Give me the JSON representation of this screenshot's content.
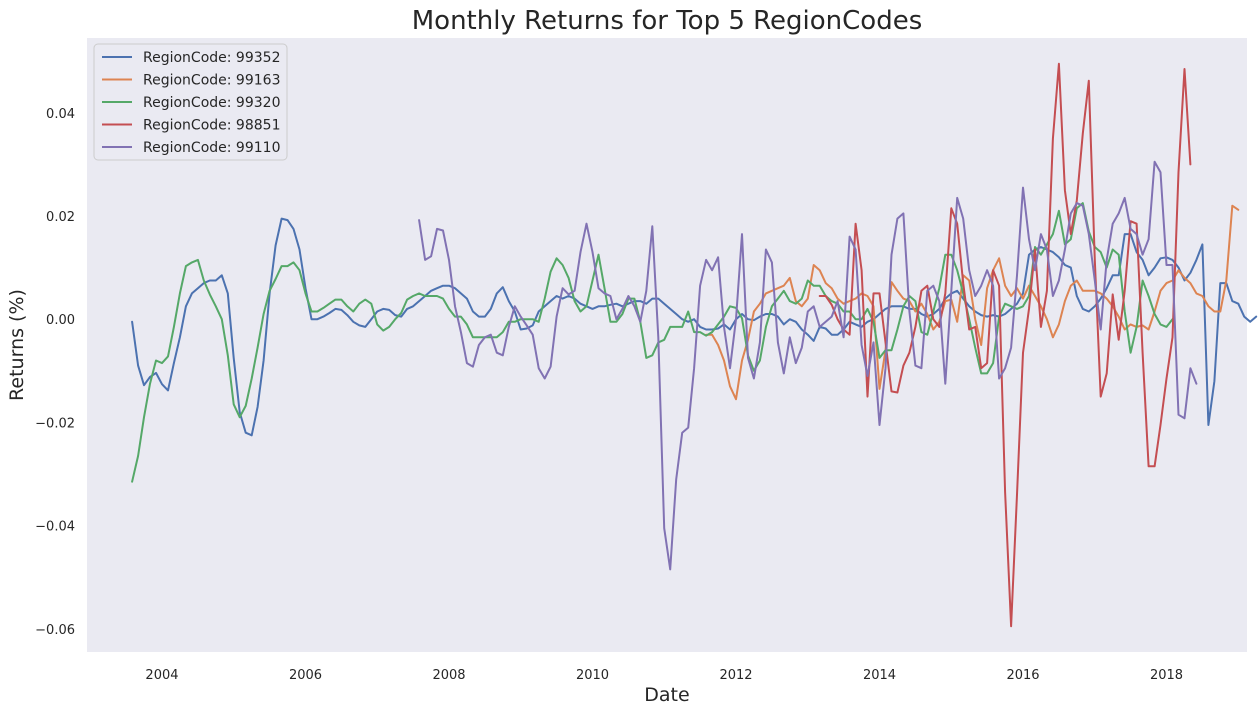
{
  "chart_data": {
    "type": "line",
    "title": "Monthly Returns for Top 5 RegionCodes",
    "xlabel": "Date",
    "ylabel": "Returns (%)",
    "xlim": [
      "2002-12-15",
      "2019-02-15"
    ],
    "ylim": [
      -0.0645,
      0.0545
    ],
    "x_ticks": [
      "2004",
      "2006",
      "2008",
      "2010",
      "2012",
      "2014",
      "2016",
      "2018"
    ],
    "y_ticks": [
      -0.06,
      -0.04,
      -0.02,
      0.0,
      0.02,
      0.04
    ],
    "y_tick_labels": [
      "−0.06",
      "−0.04",
      "−0.02",
      "0.00",
      "0.02",
      "0.04"
    ],
    "grid": false,
    "legend_position": "top-left",
    "background": "#eaeaf2",
    "series": [
      {
        "name": "RegionCode: 99352",
        "color": "#4c72b0",
        "start": "2003-08",
        "values": [
          -0.0005,
          -0.009,
          -0.0128,
          -0.0112,
          -0.0104,
          -0.0126,
          -0.0138,
          -0.0085,
          -0.0035,
          0.0025,
          0.005,
          0.006,
          0.007,
          0.0075,
          0.0075,
          0.0085,
          0.005,
          -0.0075,
          -0.018,
          -0.022,
          -0.0225,
          -0.017,
          -0.008,
          0.005,
          0.0143,
          0.0195,
          0.0192,
          0.0175,
          0.0135,
          0.006,
          0.0,
          0.0,
          0.0005,
          0.0012,
          0.002,
          0.0018,
          0.0008,
          -0.0005,
          -0.0012,
          -0.0015,
          0.0,
          0.0015,
          0.002,
          0.0018,
          0.0008,
          0.0005,
          0.002,
          0.0025,
          0.0035,
          0.0045,
          0.0055,
          0.006,
          0.0065,
          0.0065,
          0.006,
          0.005,
          0.004,
          0.0015,
          0.0005,
          0.0005,
          0.002,
          0.005,
          0.0062,
          0.0035,
          0.0015,
          -0.002,
          -0.0018,
          -0.0012,
          0.0015,
          0.0025,
          0.0035,
          0.0045,
          0.004,
          0.0045,
          0.004,
          0.003,
          0.0025,
          0.002,
          0.0025,
          0.0025,
          0.0028,
          0.003,
          0.0025,
          0.003,
          0.0035,
          0.0035,
          0.003,
          0.004,
          0.004,
          0.003,
          0.002,
          0.001,
          0.0,
          -0.0005,
          0.0,
          -0.0015,
          -0.002,
          -0.002,
          -0.0018,
          -0.001,
          -0.002,
          0.0,
          0.001,
          0.0,
          -0.0002,
          0.0005,
          0.001,
          0.001,
          0.0005,
          -0.001,
          0.0,
          -0.0005,
          -0.002,
          -0.003,
          -0.0042,
          -0.0015,
          -0.0018,
          -0.003,
          -0.003,
          -0.002,
          -0.0005,
          -0.001,
          -0.0015,
          -0.0005,
          0.0,
          0.001,
          0.002,
          0.0025,
          0.0025,
          0.0025,
          0.002,
          0.002,
          0.001,
          0.0005,
          0.001,
          0.002,
          0.004,
          0.005,
          0.0055,
          0.004,
          0.0025,
          0.0015,
          0.0008,
          0.0005,
          0.0008,
          0.0005,
          0.001,
          0.002,
          0.003,
          0.005,
          0.0125,
          0.0135,
          0.014,
          0.0135,
          0.013,
          0.012,
          0.0105,
          0.01,
          0.0045,
          0.002,
          0.0015,
          0.0025,
          0.004,
          0.006,
          0.0085,
          0.0085,
          0.0165,
          0.0165,
          0.013,
          0.0115,
          0.0085,
          0.01,
          0.0118,
          0.012,
          0.0115,
          0.01,
          0.0075,
          0.009,
          0.0115,
          0.0145,
          -0.0205,
          -0.012,
          0.007,
          0.007,
          0.0035,
          0.003,
          0.0005,
          -0.0005,
          0.0005
        ]
      },
      {
        "name": "RegionCode: 99163",
        "color": "#dd8452",
        "start": "2011-08",
        "values": [
          -0.003,
          -0.003,
          -0.005,
          -0.008,
          -0.013,
          -0.0155,
          -0.008,
          -0.004,
          0.0015,
          0.003,
          0.005,
          0.0055,
          0.006,
          0.0065,
          0.008,
          0.0035,
          0.0025,
          0.004,
          0.0105,
          0.0095,
          0.007,
          0.006,
          0.004,
          0.003,
          0.0035,
          0.004,
          0.005,
          0.0045,
          0.0025,
          -0.0135,
          -0.006,
          0.0072,
          0.0055,
          0.004,
          0.0035,
          0.0015,
          0.003,
          0.001,
          -0.002,
          -0.0005,
          0.0035,
          0.0038,
          -0.0005,
          0.0085,
          0.0075,
          0.0,
          -0.005,
          0.006,
          0.0095,
          0.0118,
          0.0065,
          0.0045,
          0.006,
          0.004,
          0.0065,
          0.0045,
          0.0025,
          0.0,
          -0.0035,
          -0.001,
          0.0035,
          0.0065,
          0.0075,
          0.0055,
          0.0055,
          0.0055,
          0.005,
          0.004,
          0.0025,
          0.0005,
          -0.002,
          -0.001,
          -0.0015,
          -0.0012,
          -0.002,
          0.0015,
          0.0055,
          0.007,
          0.0075,
          0.0095,
          0.008,
          0.007,
          0.005,
          0.0045,
          0.0025,
          0.0015,
          0.0015,
          0.0075,
          0.022,
          0.0212
        ]
      },
      {
        "name": "RegionCode: 99320",
        "color": "#55a868",
        "start": "2003-08",
        "values": [
          -0.0315,
          -0.0265,
          -0.019,
          -0.0125,
          -0.008,
          -0.0085,
          -0.0072,
          -0.0015,
          0.005,
          0.0103,
          0.011,
          0.0115,
          0.0075,
          0.0048,
          0.0025,
          0.0,
          -0.007,
          -0.0165,
          -0.019,
          -0.0168,
          -0.0115,
          -0.0055,
          0.001,
          0.0055,
          0.0078,
          0.0103,
          0.0103,
          0.011,
          0.0095,
          0.005,
          0.0015,
          0.0015,
          0.0022,
          0.003,
          0.0038,
          0.0038,
          0.0025,
          0.0015,
          0.003,
          0.0038,
          0.003,
          -0.001,
          -0.0022,
          -0.0015,
          0.0,
          0.0012,
          0.0038,
          0.0045,
          0.005,
          0.0045,
          0.0045,
          0.0045,
          0.004,
          0.002,
          0.0005,
          0.0005,
          -0.001,
          -0.0035,
          -0.0035,
          -0.0035,
          -0.0035,
          -0.0035,
          -0.0025,
          -0.0005,
          -0.0005,
          0.0,
          0.0,
          0.0,
          -0.0005,
          0.004,
          0.0092,
          0.0118,
          0.0105,
          0.008,
          0.0035,
          0.0015,
          0.0025,
          0.0075,
          0.0125,
          0.006,
          -0.0005,
          -0.0005,
          0.001,
          0.004,
          0.004,
          -0.0005,
          -0.0075,
          -0.007,
          -0.0045,
          -0.004,
          -0.0015,
          -0.0015,
          -0.0015,
          0.0015,
          -0.0025,
          -0.0025,
          -0.0032,
          -0.0025,
          -0.001,
          0.0005,
          0.0025,
          0.0022,
          0.0002,
          -0.007,
          -0.01,
          -0.008,
          -0.0015,
          0.0025,
          0.004,
          0.0055,
          0.0035,
          0.003,
          0.004,
          0.0075,
          0.0065,
          0.0065,
          0.0045,
          0.0035,
          0.003,
          0.0015,
          0.0015,
          0.0,
          0.0,
          0.002,
          -0.0005,
          -0.0075,
          -0.006,
          -0.006,
          -0.002,
          0.0025,
          0.0045,
          0.0035,
          -0.0025,
          -0.003,
          0.0015,
          0.006,
          0.0125,
          0.0125,
          0.0095,
          0.005,
          0.0,
          -0.0055,
          -0.0105,
          -0.0105,
          -0.0085,
          0.0005,
          0.003,
          0.0025,
          0.002,
          0.0025,
          0.0045,
          0.014,
          0.0125,
          0.0145,
          0.0165,
          0.021,
          0.0145,
          0.0155,
          0.0215,
          0.0225,
          0.017,
          0.014,
          0.013,
          0.01,
          0.0135,
          0.0125,
          0.0015,
          -0.0065,
          -0.0015,
          0.0075,
          0.0045,
          0.001,
          -0.001,
          -0.0015,
          0.0
        ]
      },
      {
        "name": "RegionCode: 98851",
        "color": "#c44e52",
        "start": "2013-03",
        "values": [
          0.0045,
          0.0045,
          0.0028,
          0.0,
          -0.002,
          -0.003,
          0.0185,
          0.0095,
          -0.015,
          0.005,
          0.005,
          -0.0045,
          -0.014,
          -0.0142,
          -0.009,
          -0.0065,
          -0.0015,
          0.0055,
          0.0065,
          0.0,
          -0.0015,
          0.005,
          0.0215,
          0.0185,
          0.007,
          -0.002,
          -0.0015,
          -0.0095,
          -0.0085,
          0.0095,
          0.0065,
          -0.0335,
          -0.0595,
          -0.034,
          -0.0065,
          0.002,
          0.0135,
          -0.0015,
          0.0055,
          0.035,
          0.0495,
          0.025,
          0.0165,
          0.023,
          0.036,
          0.0462,
          0.0115,
          -0.015,
          -0.0105,
          0.0048,
          -0.004,
          0.0055,
          0.019,
          0.0185,
          -0.0065,
          -0.0285,
          -0.0285,
          -0.0205,
          -0.0115,
          -0.0035,
          0.0285,
          0.0485,
          0.03
        ]
      },
      {
        "name": "RegionCode: 99110",
        "color": "#8172b3",
        "start": "2007-08",
        "values": [
          0.0192,
          0.0115,
          0.0122,
          0.0175,
          0.0172,
          0.0115,
          0.0025,
          -0.0025,
          -0.0085,
          -0.0092,
          -0.005,
          -0.0035,
          -0.003,
          -0.0065,
          -0.007,
          -0.0015,
          0.0025,
          0.0005,
          -0.0012,
          -0.003,
          -0.0095,
          -0.0115,
          -0.0092,
          0.0005,
          0.006,
          0.0048,
          0.0055,
          0.013,
          0.0185,
          0.013,
          0.006,
          0.005,
          0.0045,
          0.0,
          0.002,
          0.0045,
          0.0025,
          -0.0005,
          0.0055,
          0.018,
          -0.0035,
          -0.0405,
          -0.0485,
          -0.031,
          -0.022,
          -0.021,
          -0.0095,
          0.0065,
          0.0115,
          0.0095,
          0.012,
          -0.0015,
          -0.0095,
          0.0,
          0.0165,
          -0.0075,
          -0.0115,
          -0.0045,
          0.0135,
          0.011,
          -0.0045,
          -0.0105,
          -0.0035,
          -0.0085,
          -0.0055,
          0.0015,
          0.0025,
          -0.0015,
          -0.0005,
          0.0005,
          0.0035,
          -0.0035,
          0.016,
          0.0135,
          -0.005,
          -0.011,
          -0.0045,
          -0.0205,
          -0.0095,
          0.0125,
          0.0195,
          0.0205,
          0.0015,
          -0.009,
          -0.0095,
          0.0055,
          0.0065,
          0.0035,
          -0.0125,
          0.0055,
          0.0235,
          0.0195,
          0.0095,
          0.0045,
          0.0065,
          0.0095,
          0.0065,
          -0.0115,
          -0.0095,
          -0.0055,
          0.0085,
          0.0255,
          0.0155,
          0.0095,
          0.0165,
          0.0135,
          0.0045,
          0.0075,
          0.0135,
          0.0205,
          0.0225,
          0.022,
          0.0165,
          0.0075,
          -0.002,
          0.0115,
          0.0185,
          0.0205,
          0.0235,
          0.0175,
          0.0165,
          0.0125,
          0.0155,
          0.0305,
          0.0285,
          0.0105,
          0.0105,
          -0.0185,
          -0.0192,
          -0.0095,
          -0.0125
        ]
      }
    ]
  }
}
